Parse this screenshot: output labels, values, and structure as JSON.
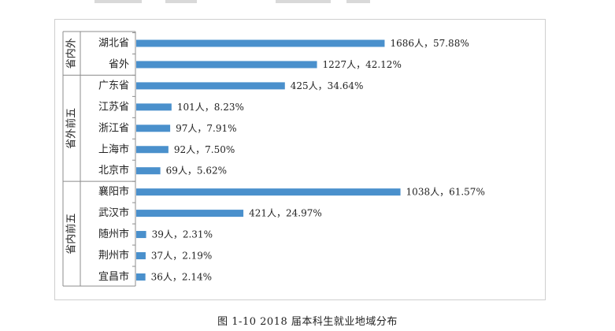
{
  "caption": "图 1-10   2018 届本科生就业地域分布",
  "chart_data": {
    "type": "bar",
    "orientation": "horizontal",
    "bar_color": "#4a90cc",
    "groups": [
      {
        "label": "省内外",
        "categories": [
          "湖北省",
          "省外"
        ]
      },
      {
        "label": "省外前五",
        "categories": [
          "广东省",
          "江苏省",
          "浙江省",
          "上海市",
          "北京市"
        ]
      },
      {
        "label": "省内前五",
        "categories": [
          "襄阳市",
          "武汉市",
          "随州市",
          "荆州市",
          "宜昌市"
        ]
      }
    ],
    "categories": [
      "湖北省",
      "省外",
      "广东省",
      "江苏省",
      "浙江省",
      "上海市",
      "北京市",
      "襄阳市",
      "武汉市",
      "随州市",
      "荆州市",
      "宜昌市"
    ],
    "values": [
      57.88,
      42.12,
      34.64,
      8.23,
      7.91,
      7.5,
      5.62,
      61.57,
      24.97,
      2.31,
      2.19,
      2.14
    ],
    "counts": [
      1686,
      1227,
      425,
      101,
      97,
      92,
      69,
      1038,
      421,
      39,
      37,
      36
    ],
    "data_labels": [
      "1686人，57.88%",
      "1227人，42.12%",
      "425人，34.64%",
      "101人，8.23%",
      "97人，7.91%",
      "92人，7.50%",
      "69人，5.62%",
      "1038人，61.57%",
      "421人，24.97%",
      "39人，2.31%",
      "37人，2.19%",
      "36人，2.14%"
    ],
    "x_scale_max": 66
  }
}
